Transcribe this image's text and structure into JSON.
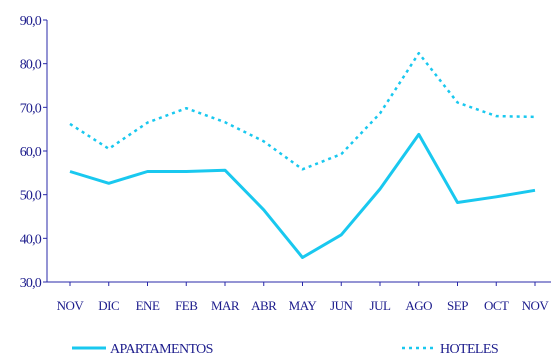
{
  "chart_data": {
    "type": "line",
    "categories": [
      "NOV",
      "DIC",
      "ENE",
      "FEB",
      "MAR",
      "ABR",
      "MAY",
      "JUN",
      "JUL",
      "AGO",
      "SEP",
      "OCT",
      "NOV"
    ],
    "ylim": [
      30,
      90
    ],
    "ytick_labels": [
      "30,0",
      "40,0",
      "50,0",
      "60,0",
      "70,0",
      "80,0",
      "90,0"
    ],
    "series": [
      {
        "name": "APARTAMENTOS",
        "style": "solid",
        "color": "#19c8ef",
        "values": [
          55.3,
          52.6,
          55.3,
          55.3,
          55.6,
          46.5,
          35.6,
          40.8,
          51.3,
          63.8,
          48.2,
          49.5,
          51.0
        ]
      },
      {
        "name": "HOTELES",
        "style": "dotted",
        "color": "#19c8ef",
        "values": [
          66.2,
          60.5,
          66.5,
          69.8,
          66.6,
          62.2,
          55.8,
          59.3,
          68.6,
          82.4,
          71.1,
          68.0,
          67.8
        ]
      }
    ],
    "grid": false,
    "legend": "bottom",
    "colors": {
      "axis": "#2828a8",
      "tick_text": "#1c1c8c",
      "series": "#19c8ef"
    }
  }
}
